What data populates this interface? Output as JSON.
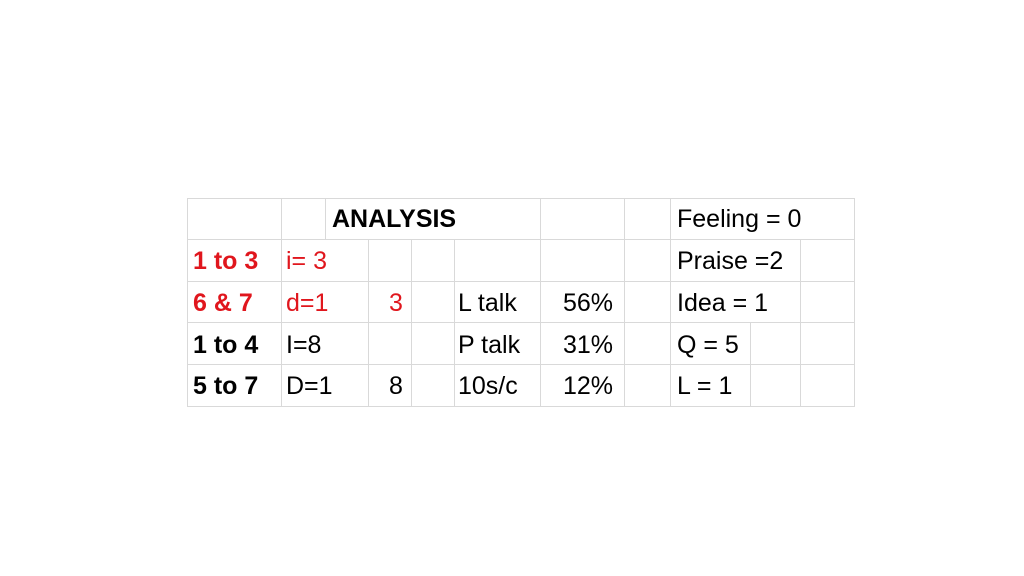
{
  "colors": {
    "red_text": "#e0161d",
    "black_text": "#000000",
    "gridline": "#d9d9d9"
  },
  "table": {
    "title": "ANALYSIS",
    "rows": [
      {
        "range": "",
        "code": "",
        "count": "",
        "talk_label": "",
        "percent": "",
        "category": "Feeling = 0"
      },
      {
        "range": "1 to 3",
        "code": "i= 3",
        "count": "",
        "talk_label": "",
        "percent": "",
        "category": "Praise =2"
      },
      {
        "range": "6 & 7",
        "code": "d=1",
        "count": "3",
        "talk_label": "L talk",
        "percent": "56%",
        "category": "Idea = 1"
      },
      {
        "range": "1 to 4",
        "code": "I=8",
        "count": "",
        "talk_label": "P talk",
        "percent": "31%",
        "category": "Q = 5"
      },
      {
        "range": "5 to 7",
        "code": "D=1",
        "count": "8",
        "talk_label": "10s/c",
        "percent": "12%",
        "category": "L =  1"
      }
    ]
  }
}
